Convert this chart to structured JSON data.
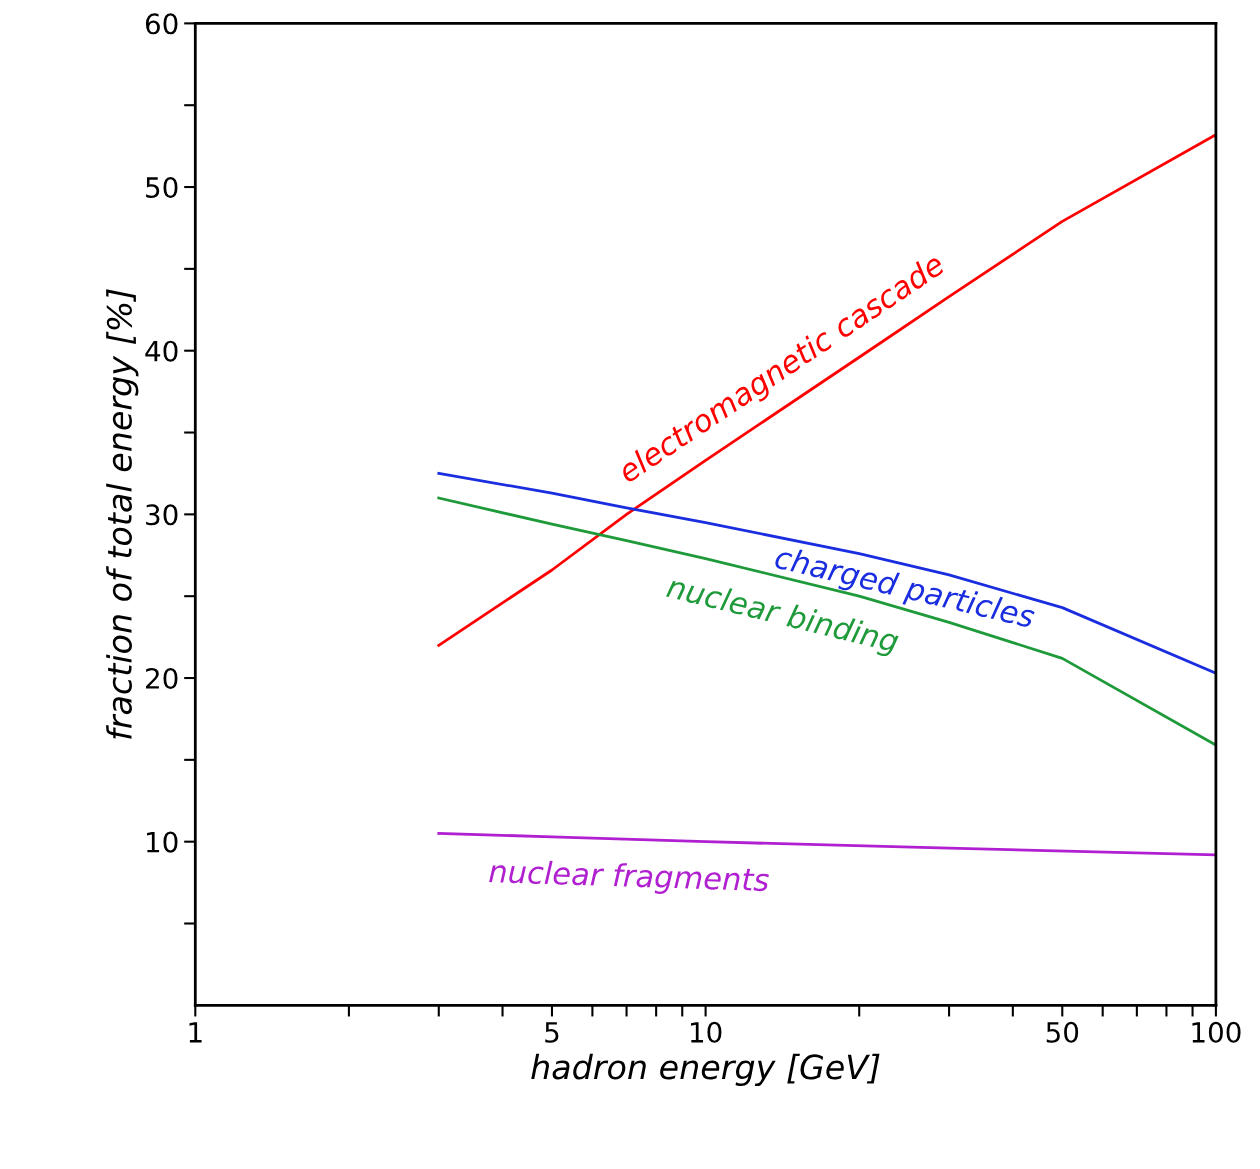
{
  "chart_data": {
    "type": "line",
    "xlabel": "hadron energy [GeV]",
    "ylabel": "fraction of total energy [%]",
    "log": "x",
    "xlim": [
      1,
      100
    ],
    "ylim": [
      0,
      60
    ],
    "xticks": [
      1,
      {
        "value": 2,
        "label": null
      },
      {
        "value": 3,
        "label": null
      },
      {
        "value": 4,
        "label": null
      },
      5,
      {
        "value": 6,
        "label": null
      },
      {
        "value": 7,
        "label": null
      },
      {
        "value": 8,
        "label": null
      },
      {
        "value": 9,
        "label": null
      },
      10,
      {
        "value": 20,
        "label": null
      },
      {
        "value": 30,
        "label": null
      },
      {
        "value": 40,
        "label": null
      },
      50,
      {
        "value": 60,
        "label": null
      },
      {
        "value": 70,
        "label": null
      },
      {
        "value": 80,
        "label": null
      },
      {
        "value": 90,
        "label": null
      },
      100
    ],
    "yticks": [
      {
        "value": 5,
        "label": null
      },
      10,
      {
        "value": 15,
        "label": null
      },
      20,
      {
        "value": 25,
        "label": null
      },
      30,
      {
        "value": 35,
        "label": null
      },
      40,
      {
        "value": 45,
        "label": null
      },
      50,
      {
        "value": 55,
        "label": null
      },
      60
    ],
    "grid": false,
    "legend": false,
    "marker": "none",
    "line_style": "solid",
    "series": [
      {
        "name": "electromagnetic cascade",
        "color": "#ff0000",
        "x": [
          3,
          5,
          7,
          10,
          20,
          30,
          50,
          100
        ],
        "values": [
          22.0,
          26.6,
          30.0,
          33.3,
          39.6,
          43.3,
          47.9,
          53.2
        ]
      },
      {
        "name": "charged particles",
        "color": "#1a2ee0",
        "x": [
          3,
          5,
          7,
          10,
          20,
          30,
          50,
          100
        ],
        "values": [
          32.5,
          31.3,
          30.4,
          29.5,
          27.6,
          26.3,
          24.3,
          20.3
        ]
      },
      {
        "name": "nuclear binding",
        "color": "#1f9a3a",
        "x": [
          3,
          5,
          7,
          10,
          20,
          30,
          50,
          100
        ],
        "values": [
          31.0,
          29.4,
          28.4,
          27.3,
          25.0,
          23.4,
          21.2,
          15.9
        ]
      },
      {
        "name": "nuclear fragments",
        "color": "#b020d0",
        "x": [
          3,
          5,
          10,
          30,
          100
        ],
        "values": [
          10.5,
          10.3,
          10.0,
          9.6,
          9.2
        ]
      }
    ]
  }
}
